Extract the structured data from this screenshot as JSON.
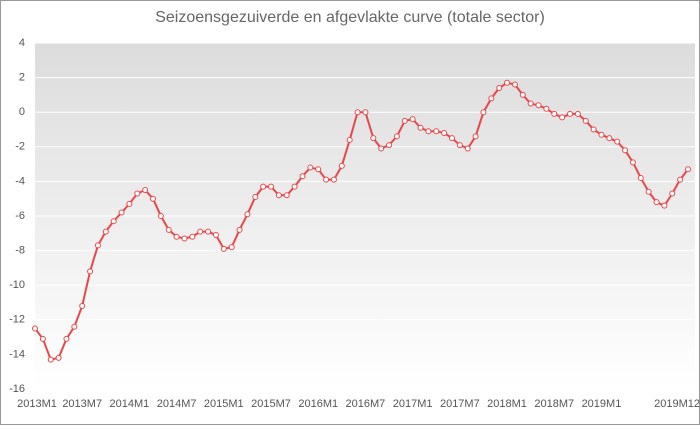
{
  "chart_data": {
    "type": "line",
    "title": "Seizoensgezuiverde en afgevlakte curve (totale sector)",
    "categories": [
      "2013M1",
      null,
      null,
      null,
      null,
      null,
      "2013M7",
      null,
      null,
      null,
      null,
      null,
      "2014M1",
      null,
      null,
      null,
      null,
      null,
      "2014M7",
      null,
      null,
      null,
      null,
      null,
      "2015M1",
      null,
      null,
      null,
      null,
      null,
      "2015M7",
      null,
      null,
      null,
      null,
      null,
      "2016M1",
      null,
      null,
      null,
      null,
      null,
      "2016M7",
      null,
      null,
      null,
      null,
      null,
      "2017M1",
      null,
      null,
      null,
      null,
      null,
      "2017M7",
      null,
      null,
      null,
      null,
      null,
      "2018M1",
      null,
      null,
      null,
      null,
      null,
      "2018M7",
      null,
      null,
      null,
      null,
      null,
      "2019M1",
      null,
      null,
      null,
      null,
      null,
      null,
      null,
      null,
      null,
      null,
      "2019M12"
    ],
    "values": [
      -12.5,
      -13.1,
      -14.3,
      -14.2,
      -13.1,
      -12.4,
      -11.2,
      -9.2,
      -7.7,
      -6.9,
      -6.3,
      -5.8,
      -5.3,
      -4.7,
      -4.5,
      -5.0,
      -6.0,
      -6.8,
      -7.2,
      -7.3,
      -7.2,
      -6.9,
      -6.9,
      -7.1,
      -7.9,
      -7.8,
      -6.8,
      -5.9,
      -4.9,
      -4.3,
      -4.3,
      -4.8,
      -4.8,
      -4.3,
      -3.7,
      -3.2,
      -3.3,
      -3.9,
      -3.9,
      -3.1,
      -1.6,
      0.0,
      0.0,
      -1.5,
      -2.1,
      -1.9,
      -1.4,
      -0.5,
      -0.4,
      -0.9,
      -1.1,
      -1.1,
      -1.2,
      -1.5,
      -1.9,
      -2.1,
      -1.4,
      0.0,
      0.8,
      1.4,
      1.7,
      1.6,
      1.0,
      0.5,
      0.4,
      0.2,
      -0.1,
      -0.3,
      -0.1,
      -0.1,
      -0.5,
      -1.0,
      -1.3,
      -1.5,
      -1.7,
      -2.2,
      -2.9,
      -3.8,
      -4.6,
      -5.2,
      -5.4,
      -4.7,
      -3.9,
      -3.3
    ],
    "color": "#e8474a",
    "ylim": [
      -16,
      4
    ],
    "yticks": [
      -16,
      -14,
      -12,
      -10,
      -8,
      -6,
      -4,
      -2,
      0,
      2,
      4
    ],
    "grid": true
  }
}
